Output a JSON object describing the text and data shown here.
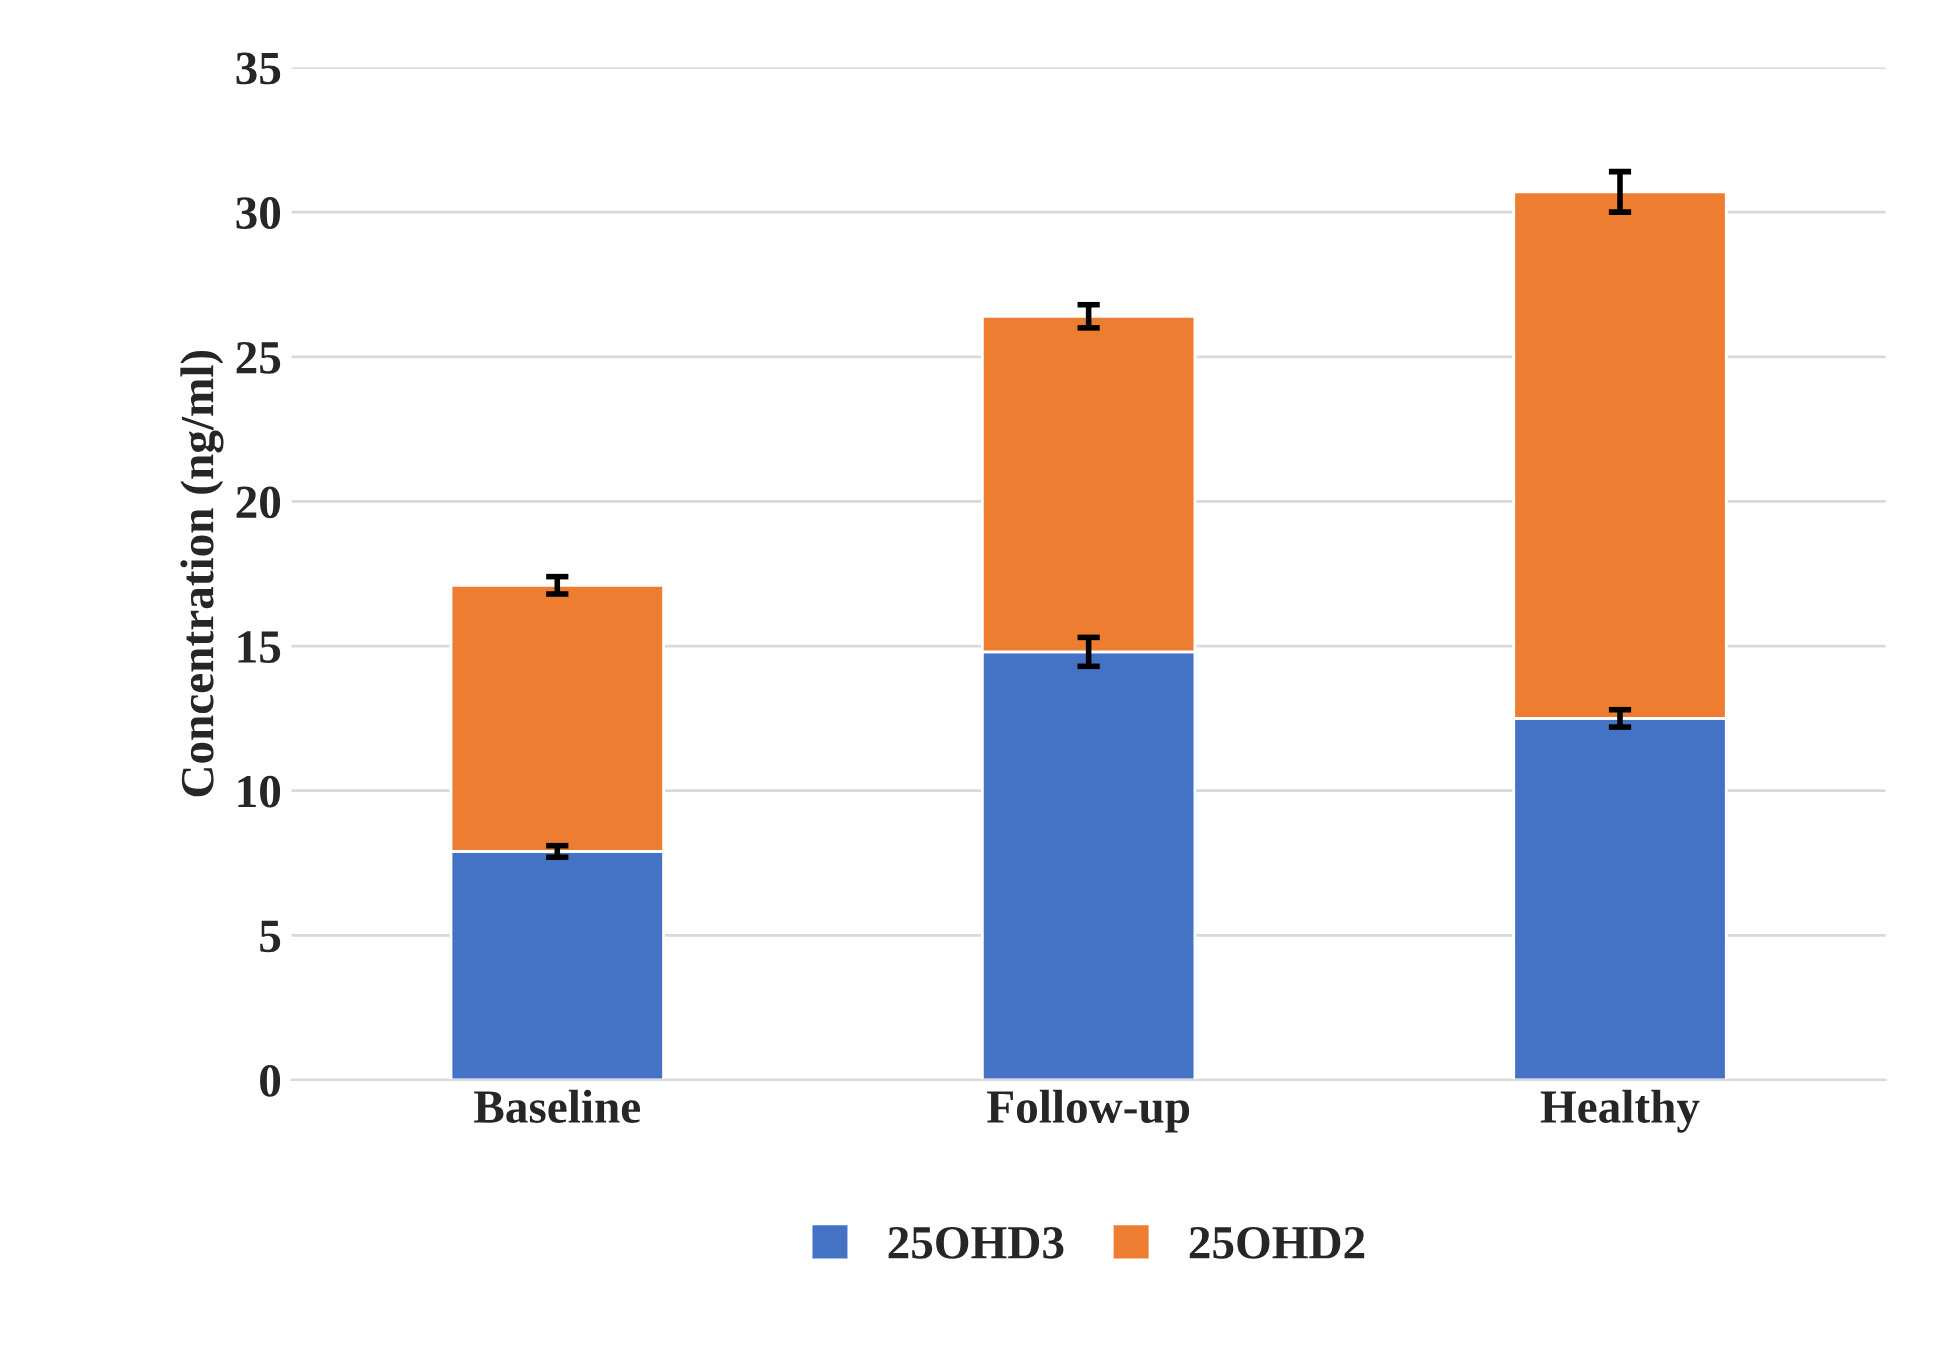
{
  "chart_data": {
    "type": "bar",
    "stacked": true,
    "ylabel": "Concentration (ng/ml)",
    "categories": [
      "Baseline",
      "Follow-up",
      "Healthy"
    ],
    "series": [
      {
        "name": "25OHD3",
        "color": "#4472c4",
        "values": [
          7.9,
          14.8,
          12.5
        ],
        "errors": [
          0.2,
          0.5,
          0.3
        ]
      },
      {
        "name": "25OHD2",
        "color": "#ed7d31",
        "values": [
          9.2,
          11.6,
          18.2
        ],
        "errors": [
          0.3,
          0.4,
          0.7
        ]
      }
    ],
    "ylim": [
      0,
      35
    ],
    "yticks": [
      0,
      5,
      10,
      15,
      20,
      25,
      30,
      35
    ],
    "grid": "y",
    "legend": "bottom"
  }
}
